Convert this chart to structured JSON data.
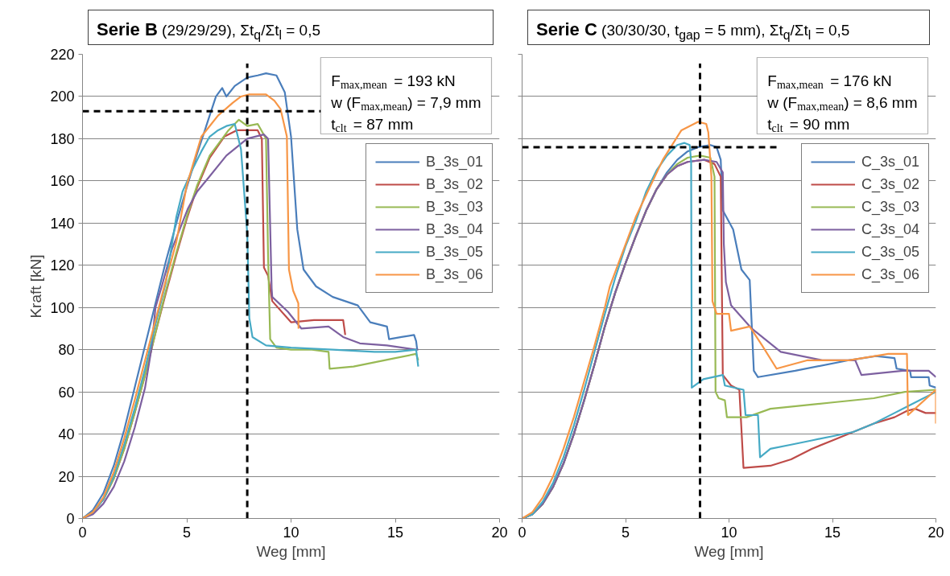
{
  "chart_data": [
    {
      "type": "line",
      "title": "Serie B (29/29/29), Σt$_{q}$/Σt$_{l}$ = 0,5",
      "xlabel": "Weg [mm]",
      "ylabel": "Kraft [kN]",
      "xlim": [
        0,
        20
      ],
      "ylim": [
        0,
        220
      ],
      "xticks": [
        0,
        5,
        10,
        15,
        20
      ],
      "yticks": [
        0,
        20,
        40,
        60,
        80,
        100,
        120,
        140,
        160,
        180,
        200,
        220
      ],
      "grid": "y",
      "legend": "top right",
      "annotations": [
        "F$_{max,mean}$ = 193 kN",
        "w (F$_{max,mean}$) = 7,9 mm",
        "t$_{clt}$ = 87 mm"
      ],
      "ref_lines": [
        {
          "axis": "x",
          "value": 7.9,
          "color": "#000000",
          "line_style": "dashed"
        },
        {
          "axis": "y",
          "value": 193,
          "color": "#000000",
          "line_style": "dashed"
        }
      ],
      "series": [
        {
          "name": "B_3s_01",
          "color": "#4a7ebb",
          "x": [
            0,
            0.5,
            1,
            1.5,
            2,
            2.5,
            3,
            3.5,
            4,
            4.5,
            5,
            5.5,
            6,
            6.4,
            6.7,
            6.9,
            7.3,
            7.9,
            8.4,
            8.8,
            9.3,
            9.7,
            10.0,
            10.3,
            10.6,
            11.2,
            12.0,
            13.2,
            13.8,
            14.6,
            14.7,
            15.3,
            15.9,
            16.0,
            16.05
          ],
          "values": [
            0,
            4,
            12,
            25,
            42,
            62,
            82,
            102,
            122,
            140,
            157,
            173,
            188,
            200,
            204,
            200,
            205,
            209,
            210,
            211,
            210,
            202,
            181,
            137,
            118,
            110,
            105,
            101,
            93,
            91,
            85,
            86,
            87,
            84,
            80
          ]
        },
        {
          "name": "B_3s_02",
          "color": "#be4b48",
          "x": [
            0,
            0.5,
            1,
            1.5,
            2,
            2.5,
            3,
            3.5,
            4,
            4.5,
            5,
            5.5,
            6.1,
            6.8,
            7.4,
            7.8,
            8.4,
            8.6,
            8.7,
            8.9,
            9.1,
            10.0,
            11.1,
            12.5,
            12.6
          ],
          "values": [
            0,
            3,
            9,
            19,
            33,
            50,
            68,
            88,
            107,
            125,
            142,
            157,
            171,
            181,
            184,
            184,
            184,
            180,
            119,
            115,
            103,
            93,
            94,
            94,
            87
          ]
        },
        {
          "name": "B_3s_03",
          "color": "#98b954",
          "x": [
            0,
            0.5,
            1,
            1.5,
            2,
            2.5,
            3,
            3.5,
            4,
            4.5,
            5,
            5.5,
            6.1,
            7.0,
            7.5,
            7.9,
            8.4,
            8.8,
            8.9,
            9.0,
            9.3,
            10,
            11,
            11.8,
            11.85,
            13,
            14,
            15,
            16,
            16.1
          ],
          "values": [
            0,
            3,
            9,
            19,
            33,
            50,
            68,
            88,
            108,
            126,
            143,
            158,
            172,
            184,
            189,
            186,
            187,
            180,
            124,
            85,
            81,
            80,
            80,
            79,
            71,
            72,
            74,
            76,
            78,
            75
          ]
        },
        {
          "name": "B_3s_04",
          "color": "#7d60a0",
          "x": [
            0,
            0.5,
            1,
            1.5,
            2,
            2.5,
            3,
            3.3,
            3.5,
            3.8,
            4.3,
            5.06,
            5.5,
            6,
            6.9,
            7.9,
            8.7,
            8.9,
            9.07,
            9.1,
            9.85,
            10.5,
            11.8,
            12.5,
            13.3,
            14.6,
            16.0,
            16.1
          ],
          "values": [
            0,
            2,
            7,
            15,
            27,
            43,
            62,
            80,
            100,
            110,
            128,
            147,
            155,
            161,
            172,
            180,
            182,
            180,
            109,
            105,
            98,
            90,
            91,
            86,
            83,
            82,
            80,
            80
          ]
        },
        {
          "name": "B_3s_05",
          "color": "#46aac5",
          "x": [
            0,
            0.5,
            1,
            1.5,
            2,
            2.5,
            3,
            3.5,
            4,
            4.5,
            4.8,
            5.3,
            5.7,
            6.1,
            6.5,
            6.9,
            7.3,
            7.6,
            7.9,
            8.0,
            8.15,
            8.8,
            10,
            12,
            14,
            15,
            16,
            16.1
          ],
          "values": [
            0,
            3,
            9,
            20,
            35,
            52,
            71,
            92,
            112,
            143,
            155,
            166,
            174,
            181,
            184,
            186,
            187,
            175,
            135,
            95,
            86,
            82,
            81,
            80,
            79,
            79,
            80,
            72
          ]
        },
        {
          "name": "B_3s_06",
          "color": "#f79646",
          "x": [
            0,
            0.5,
            1,
            1.5,
            2,
            2.5,
            3,
            3.5,
            4,
            4.5,
            5,
            5.7,
            6.5,
            7.2,
            7.6,
            8.0,
            8.8,
            9.2,
            9.5,
            9.8,
            9.9,
            10.1,
            10.35,
            10.36
          ],
          "values": [
            0,
            3,
            10,
            22,
            38,
            56,
            75,
            94,
            113,
            131,
            158,
            181,
            191,
            197,
            200,
            201,
            201,
            198,
            194,
            181,
            118,
            108,
            102,
            90
          ]
        }
      ]
    },
    {
      "type": "line",
      "title": "Serie C (30/30/30, t$_{gap}$ = 5 mm), Σt$_{q}$/Σt$_{l}$ = 0,5",
      "xlabel": "Weg [mm]",
      "xlim": [
        0,
        20
      ],
      "ylim": [
        0,
        220
      ],
      "xticks": [
        0,
        5,
        10,
        15,
        20
      ],
      "yticks": [
        0,
        20,
        40,
        60,
        80,
        100,
        120,
        140,
        160,
        180,
        200,
        220
      ],
      "grid": "y",
      "legend": "top right",
      "tick_labels": "x",
      "annotations": [
        "F$_{max,mean}$ = 176 kN",
        "w (F$_{max,mean}$) = 8,6 mm",
        "t$_{clt}$ = 90 mm"
      ],
      "ref_lines": [
        {
          "axis": "x",
          "value": 8.6,
          "color": "#000000",
          "line_style": "dashed"
        },
        {
          "axis": "y",
          "value": 176,
          "color": "#000000",
          "line_style": "dashed"
        }
      ],
      "series": [
        {
          "name": "C_3s_01",
          "color": "#4a7ebb",
          "x": [
            0,
            0.5,
            1,
            1.5,
            2,
            2.5,
            3,
            3.5,
            4,
            4.5,
            5,
            5.5,
            6,
            6.5,
            7,
            7.5,
            8,
            8.5,
            9.1,
            9.4,
            9.6,
            9.7,
            10.2,
            10.6,
            11.0,
            11.2,
            11.4,
            13.2,
            15.8,
            17.1,
            18.0,
            18.1,
            18.75,
            18.8,
            19.65,
            19.7,
            20
          ],
          "values": [
            0,
            2,
            7,
            15,
            26,
            40,
            56,
            73,
            91,
            107,
            121,
            134,
            146,
            156,
            164,
            170,
            174,
            176,
            177,
            176,
            170,
            146,
            137,
            118,
            113,
            70,
            67,
            70,
            75,
            77,
            76,
            71,
            70,
            67,
            67,
            63,
            62
          ]
        },
        {
          "name": "C_3s_02",
          "color": "#be4b48",
          "x": [
            0,
            0.5,
            1,
            1.5,
            2,
            2.5,
            3,
            3.5,
            4,
            4.5,
            5,
            5.5,
            6,
            6.5,
            7,
            7.5,
            8,
            8.8,
            9.3,
            9.6,
            9.7,
            10.1,
            10.5,
            10.7,
            12,
            13,
            14,
            15,
            16,
            17,
            18,
            18.6,
            19,
            19.5,
            20
          ],
          "values": [
            0,
            2,
            7,
            15,
            26,
            40,
            56,
            73,
            91,
            107,
            121,
            134,
            146,
            156,
            163,
            167,
            169,
            170,
            168,
            162,
            68,
            63,
            61,
            24,
            25,
            28,
            33,
            37,
            41,
            45,
            48,
            51,
            52,
            50,
            50
          ]
        },
        {
          "name": "C_3s_03",
          "color": "#98b954",
          "x": [
            0,
            0.5,
            1,
            1.5,
            2,
            2.5,
            3,
            3.5,
            4,
            4.5,
            5,
            5.5,
            6,
            6.5,
            7,
            7.5,
            8,
            8.6,
            9.1,
            9.3,
            9.35,
            9.5,
            9.8,
            9.9,
            10.85,
            12,
            15,
            17,
            18.5,
            20
          ],
          "values": [
            0,
            2,
            7,
            15,
            26,
            40,
            56,
            73,
            91,
            107,
            121,
            134,
            146,
            156,
            163,
            168,
            171,
            172,
            171,
            162,
            60,
            57,
            56,
            48,
            48,
            52,
            55,
            57,
            60,
            61
          ]
        },
        {
          "name": "C_3s_04",
          "color": "#7d60a0",
          "x": [
            0,
            0.5,
            1,
            1.5,
            2,
            2.5,
            3,
            3.5,
            4,
            4.5,
            5,
            5.5,
            6,
            6.5,
            7,
            7.5,
            8,
            8.8,
            9.4,
            9.7,
            9.75,
            9.85,
            10.1,
            11.1,
            12.5,
            14.5,
            16.1,
            16.4,
            18.4,
            19.65,
            20
          ],
          "values": [
            0,
            2,
            7,
            15,
            26,
            40,
            56,
            73,
            91,
            107,
            121,
            134,
            146,
            156,
            163,
            167,
            169,
            170,
            169,
            164,
            130,
            112,
            101,
            90,
            79,
            75,
            75,
            68,
            70,
            70,
            67
          ]
        },
        {
          "name": "C_3s_05",
          "color": "#46aac5",
          "x": [
            0,
            0.5,
            1,
            1.5,
            2,
            2.5,
            3,
            3.5,
            4,
            4.5,
            5,
            5.5,
            6,
            6.5,
            7,
            7.5,
            7.85,
            8.1,
            8.17,
            8.2,
            8.76,
            9.7,
            9.8,
            10.7,
            10.8,
            11.4,
            11.5,
            12,
            13,
            14,
            15,
            16,
            17,
            18,
            19,
            20
          ],
          "values": [
            0,
            2,
            8,
            17,
            29,
            44,
            61,
            79,
            97,
            114,
            129,
            141,
            155,
            165,
            172,
            177,
            178,
            177,
            169,
            62,
            66,
            68,
            63,
            61,
            49,
            49,
            29,
            33,
            35,
            37,
            39,
            41,
            45,
            50,
            55,
            60
          ]
        },
        {
          "name": "C_3s_06",
          "color": "#f79646",
          "x": [
            0,
            0.5,
            1,
            1.5,
            2,
            2.5,
            3,
            3.5,
            4,
            4.24,
            5.5,
            6.8,
            7.7,
            8.5,
            8.9,
            9.0,
            9.15,
            9.2,
            9.4,
            10.0,
            10.1,
            11.0,
            11.6,
            12.3,
            13.8,
            15.8,
            17.7,
            18.6,
            18.65,
            20.0,
            20.0
          ],
          "values": [
            0,
            3,
            10,
            20,
            33,
            48,
            65,
            82,
            100,
            110,
            143,
            170,
            184,
            188,
            187,
            183,
            162,
            103,
            97,
            97,
            89,
            91,
            82,
            71,
            75,
            75,
            78,
            78,
            49,
            61,
            45
          ]
        }
      ]
    }
  ]
}
